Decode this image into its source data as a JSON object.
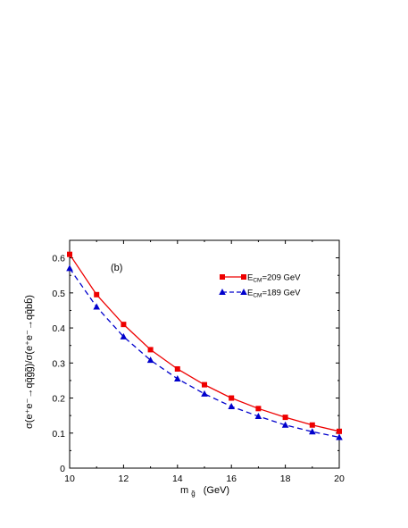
{
  "chart_data": {
    "type": "line",
    "panel_label": "(b)",
    "xlabel": "m",
    "xlabel_sub": "g̃",
    "xlabel_unit": "(GeV)",
    "ylabel": "σ(e⁺e⁻→qq̄g̃g̃)/σ(e⁺e⁻→qq̄bb̄)",
    "xlim": [
      10,
      20
    ],
    "ylim": [
      0,
      0.65
    ],
    "x_ticks": [
      "10",
      "12",
      "14",
      "16",
      "18",
      "20"
    ],
    "y_ticks": [
      "0",
      "0.1",
      "0.2",
      "0.3",
      "0.4",
      "0.5",
      "0.6"
    ],
    "x": [
      10,
      11,
      12,
      13,
      14,
      15,
      16,
      17,
      18,
      19,
      20
    ],
    "series": [
      {
        "name": "E",
        "name_sub": "CM",
        "name_rest": "=209 GeV",
        "color": "#ee0000",
        "marker": "square",
        "dash": "solid",
        "values": [
          0.61,
          0.495,
          0.41,
          0.338,
          0.283,
          0.238,
          0.2,
          0.17,
          0.145,
          0.123,
          0.105
        ]
      },
      {
        "name": "E",
        "name_sub": "CM",
        "name_rest": "=189 GeV",
        "color": "#0000cc",
        "marker": "triangle",
        "dash": "dashed",
        "values": [
          0.57,
          0.46,
          0.375,
          0.308,
          0.255,
          0.212,
          0.176,
          0.148,
          0.123,
          0.104,
          0.088
        ]
      }
    ],
    "legend_position": "top-right",
    "grid": false
  }
}
